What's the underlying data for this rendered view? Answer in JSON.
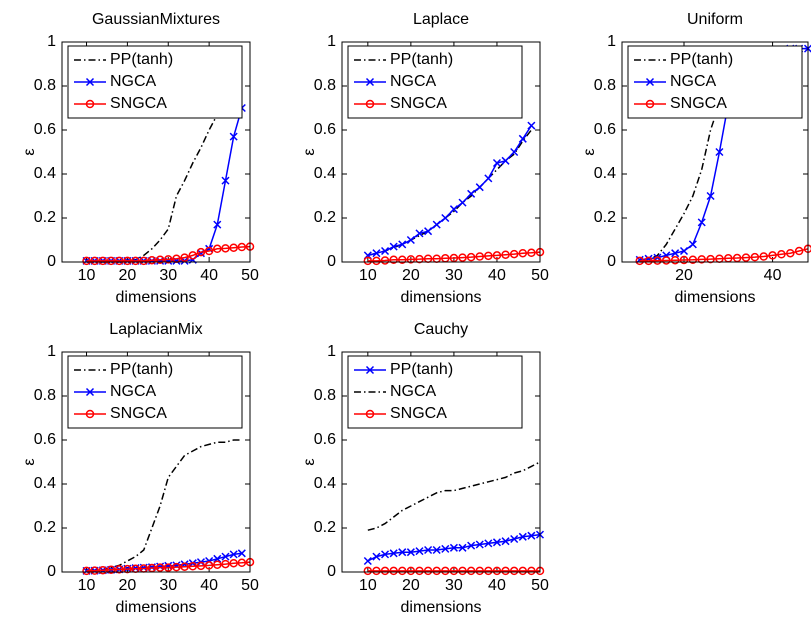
{
  "chart_data": [
    {
      "type": "line",
      "title": "GaussianMixtures",
      "xlabel": "dimensions",
      "ylabel": "ε",
      "x": [
        10,
        12,
        14,
        16,
        18,
        20,
        22,
        24,
        26,
        28,
        30,
        32,
        34,
        36,
        38,
        40,
        42,
        44,
        46,
        48,
        50
      ],
      "series": [
        {
          "name": "PP(tanh)",
          "color": "#000000",
          "line_style": "dashdot",
          "marker": "none",
          "values": [
            0,
            0,
            0,
            0,
            0,
            0.005,
            0.01,
            0.03,
            0.06,
            0.1,
            0.15,
            0.3,
            0.37,
            0.45,
            0.52,
            0.6,
            0.67,
            0.8,
            0.82,
            0.88,
            null
          ]
        },
        {
          "name": "NGCA",
          "color": "#0000ff",
          "line_style": "solid",
          "marker": "x",
          "values": [
            0.005,
            0.005,
            0.005,
            0.005,
            0.005,
            0.005,
            0.005,
            0.005,
            0.005,
            0.005,
            0.005,
            0.005,
            0.005,
            0.01,
            0.04,
            0.06,
            0.17,
            0.37,
            0.57,
            0.7,
            null
          ]
        },
        {
          "name": "SNGCA",
          "color": "#ff0000",
          "line_style": "solid",
          "marker": "o",
          "values": [
            0.005,
            0.005,
            0.005,
            0.005,
            0.005,
            0.005,
            0.005,
            0.005,
            0.008,
            0.01,
            0.012,
            0.015,
            0.02,
            0.03,
            0.045,
            0.05,
            0.06,
            0.062,
            0.065,
            0.068,
            0.07
          ]
        }
      ],
      "xlim": [
        4,
        50
      ],
      "ylim": [
        0,
        1
      ],
      "xticks": [
        10,
        20,
        30,
        40,
        50
      ],
      "yticks": [
        0,
        0.2,
        0.4,
        0.6,
        0.8,
        1
      ],
      "legend": "upper left"
    },
    {
      "type": "line",
      "title": "Laplace",
      "xlabel": "dimensions",
      "ylabel": "ε",
      "x": [
        10,
        12,
        14,
        16,
        18,
        20,
        22,
        24,
        26,
        28,
        30,
        32,
        34,
        36,
        38,
        40,
        42,
        44,
        46,
        48,
        50
      ],
      "series": [
        {
          "name": "PP(tanh)",
          "color": "#000000",
          "line_style": "dashdot",
          "marker": "none",
          "values": [
            0.03,
            0.04,
            0.05,
            0.065,
            0.08,
            0.1,
            0.12,
            0.14,
            0.17,
            0.2,
            0.23,
            0.27,
            0.3,
            0.34,
            0.38,
            0.42,
            0.46,
            0.49,
            0.55,
            0.6,
            null
          ]
        },
        {
          "name": "NGCA",
          "color": "#0000ff",
          "line_style": "solid",
          "marker": "x",
          "values": [
            0.03,
            0.04,
            0.05,
            0.07,
            0.08,
            0.1,
            0.13,
            0.14,
            0.17,
            0.2,
            0.24,
            0.27,
            0.31,
            0.34,
            0.38,
            0.45,
            0.46,
            0.5,
            0.56,
            0.62,
            null
          ]
        },
        {
          "name": "SNGCA",
          "color": "#ff0000",
          "line_style": "solid",
          "marker": "o",
          "values": [
            0.005,
            0.005,
            0.007,
            0.01,
            0.01,
            0.012,
            0.013,
            0.015,
            0.015,
            0.017,
            0.018,
            0.02,
            0.022,
            0.025,
            0.028,
            0.03,
            0.033,
            0.036,
            0.04,
            0.042,
            0.045
          ]
        }
      ],
      "xlim": [
        4,
        50
      ],
      "ylim": [
        0,
        1
      ],
      "xticks": [
        10,
        20,
        30,
        40,
        50
      ],
      "yticks": [
        0,
        0.2,
        0.4,
        0.6,
        0.8,
        1
      ],
      "legend": "upper left"
    },
    {
      "type": "line",
      "title": "Uniform",
      "xlabel": "dimensions",
      "ylabel": "ε",
      "x": [
        10,
        12,
        14,
        16,
        18,
        20,
        22,
        24,
        26,
        28,
        30,
        32,
        34,
        36,
        38,
        40,
        42,
        44,
        46,
        48
      ],
      "series": [
        {
          "name": "PP(tanh)",
          "color": "#000000",
          "line_style": "dashdot",
          "marker": "none",
          "values": [
            0,
            0.01,
            0.03,
            0.08,
            0.15,
            0.22,
            0.3,
            0.42,
            0.6,
            0.72,
            0.85,
            0.9,
            0.93,
            0.95,
            0.96,
            0.96,
            0.97,
            0.97,
            0.97,
            0.97
          ]
        },
        {
          "name": "NGCA",
          "color": "#0000ff",
          "line_style": "solid",
          "marker": "x",
          "values": [
            0.01,
            0.015,
            0.02,
            0.03,
            0.04,
            0.05,
            0.08,
            0.18,
            0.3,
            0.5,
            0.72,
            0.85,
            0.92,
            0.94,
            0.95,
            0.96,
            0.96,
            0.97,
            0.97,
            0.97
          ]
        },
        {
          "name": "SNGCA",
          "color": "#ff0000",
          "line_style": "solid",
          "marker": "o",
          "values": [
            0.005,
            0.005,
            0.006,
            0.007,
            0.008,
            0.009,
            0.01,
            0.012,
            0.013,
            0.015,
            0.017,
            0.018,
            0.02,
            0.022,
            0.025,
            0.03,
            0.035,
            0.04,
            0.05,
            0.06
          ]
        }
      ],
      "xlim": [
        6,
        48
      ],
      "ylim": [
        0,
        1
      ],
      "xticks": [
        20,
        40
      ],
      "yticks": [
        0,
        0.2,
        0.4,
        0.6,
        0.8,
        1
      ],
      "legend": "upper left"
    },
    {
      "type": "line",
      "title": "LaplacianMix",
      "xlabel": "dimensions",
      "ylabel": "ε",
      "x": [
        10,
        12,
        14,
        16,
        18,
        20,
        22,
        24,
        26,
        28,
        30,
        32,
        34,
        36,
        38,
        40,
        42,
        44,
        46,
        48,
        50
      ],
      "series": [
        {
          "name": "PP(tanh)",
          "color": "#000000",
          "line_style": "dashdot",
          "marker": "none",
          "values": [
            0.005,
            0.01,
            0.01,
            0.02,
            0.03,
            0.05,
            0.07,
            0.1,
            0.2,
            0.3,
            0.43,
            0.48,
            0.53,
            0.55,
            0.57,
            0.58,
            0.59,
            0.59,
            0.6,
            0.6,
            null
          ]
        },
        {
          "name": "NGCA",
          "color": "#0000ff",
          "line_style": "solid",
          "marker": "x",
          "values": [
            0.005,
            0.006,
            0.008,
            0.01,
            0.012,
            0.015,
            0.018,
            0.02,
            0.022,
            0.025,
            0.028,
            0.03,
            0.035,
            0.04,
            0.045,
            0.05,
            0.06,
            0.07,
            0.08,
            0.085,
            null
          ]
        },
        {
          "name": "SNGCA",
          "color": "#ff0000",
          "line_style": "solid",
          "marker": "o",
          "values": [
            0.005,
            0.006,
            0.008,
            0.01,
            0.012,
            0.013,
            0.015,
            0.016,
            0.018,
            0.02,
            0.02,
            0.022,
            0.024,
            0.026,
            0.028,
            0.03,
            0.033,
            0.036,
            0.04,
            0.042,
            0.045
          ]
        }
      ],
      "xlim": [
        4,
        50
      ],
      "ylim": [
        0,
        1
      ],
      "xticks": [
        10,
        20,
        30,
        40,
        50
      ],
      "yticks": [
        0,
        0.2,
        0.4,
        0.6,
        0.8,
        1
      ],
      "legend": "upper left"
    },
    {
      "type": "line",
      "title": "Cauchy",
      "xlabel": "dimensions",
      "ylabel": "ε",
      "x": [
        10,
        12,
        14,
        16,
        18,
        20,
        22,
        24,
        26,
        28,
        30,
        32,
        34,
        36,
        38,
        40,
        42,
        44,
        46,
        48,
        50
      ],
      "series": [
        {
          "name": "PP(tanh)",
          "color": "#0000ff",
          "line_style": "solid",
          "marker": "x",
          "values": [
            0.05,
            0.07,
            0.08,
            0.085,
            0.09,
            0.09,
            0.095,
            0.1,
            0.1,
            0.105,
            0.11,
            0.11,
            0.12,
            0.125,
            0.13,
            0.135,
            0.14,
            0.15,
            0.16,
            0.165,
            0.17
          ]
        },
        {
          "name": "NGCA",
          "color": "#000000",
          "line_style": "dashdot",
          "marker": "none",
          "values": [
            0.19,
            0.2,
            0.22,
            0.25,
            0.28,
            0.3,
            0.32,
            0.34,
            0.36,
            0.37,
            0.37,
            0.38,
            0.39,
            0.4,
            0.41,
            0.42,
            0.43,
            0.45,
            0.46,
            0.48,
            0.5
          ]
        },
        {
          "name": "SNGCA",
          "color": "#ff0000",
          "line_style": "solid",
          "marker": "o",
          "values": [
            0.005,
            0.005,
            0.005,
            0.005,
            0.005,
            0.005,
            0.005,
            0.005,
            0.005,
            0.005,
            0.005,
            0.005,
            0.005,
            0.005,
            0.005,
            0.005,
            0.005,
            0.005,
            0.005,
            0.005,
            0.005
          ]
        }
      ],
      "xlim": [
        4,
        50
      ],
      "ylim": [
        0,
        1
      ],
      "xticks": [
        10,
        20,
        30,
        40,
        50
      ],
      "yticks": [
        0,
        0.2,
        0.4,
        0.6,
        0.8,
        1
      ],
      "legend": "upper left"
    }
  ]
}
